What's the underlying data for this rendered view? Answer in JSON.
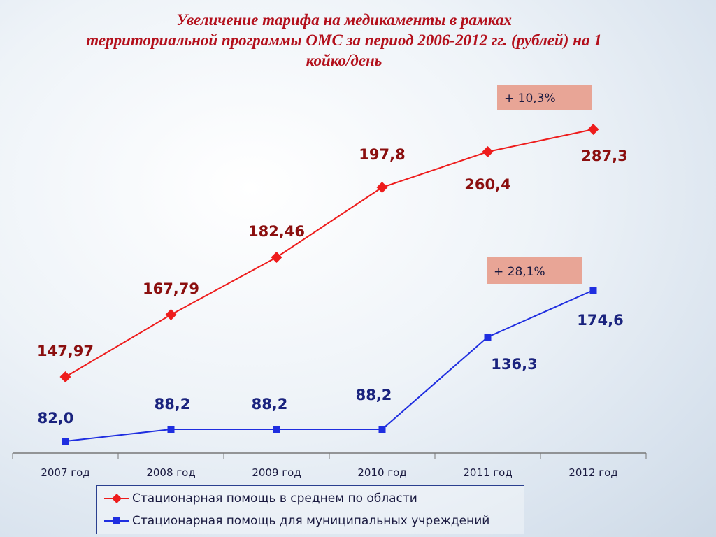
{
  "title": {
    "line1": "Увеличение  тарифа на медикаменты в рамках",
    "line2": "территориальной программы ОМС за период 2006-2012 гг. (рублей) на 1",
    "line3": "койко/день"
  },
  "chart_data": {
    "type": "line",
    "categories": [
      "2007 год",
      "2008 год",
      "2009 год",
      "2010 год",
      "2011 год",
      "2012 год"
    ],
    "series": [
      {
        "name": "Стационарная помощь в среднем по области",
        "values": [
          147.97,
          167.79,
          182.46,
          197.8,
          260.4,
          287.3
        ],
        "labels": [
          "147,97",
          "167,79",
          "182,46",
          "197,8",
          "260,4",
          "287,3"
        ],
        "color": "#ee1c1c",
        "label_color": "#8b0f0f",
        "marker": "diamond"
      },
      {
        "name": "Стационарная помощь для муниципальных учреждений",
        "values": [
          82.0,
          88.2,
          88.2,
          88.2,
          136.3,
          174.6
        ],
        "labels": [
          "82,0",
          "88,2",
          "88,2",
          "88,2",
          "136,3",
          "174,6"
        ],
        "color": "#1f2ee0",
        "label_color": "#1a237e",
        "marker": "square"
      }
    ],
    "annotations": [
      {
        "text": "+ 10,3%",
        "series": 0,
        "bg": "#e8a596"
      },
      {
        "text": "+ 28,1%",
        "series": 1,
        "bg": "#e8a596"
      }
    ],
    "legend_position": "bottom",
    "grid": false
  }
}
